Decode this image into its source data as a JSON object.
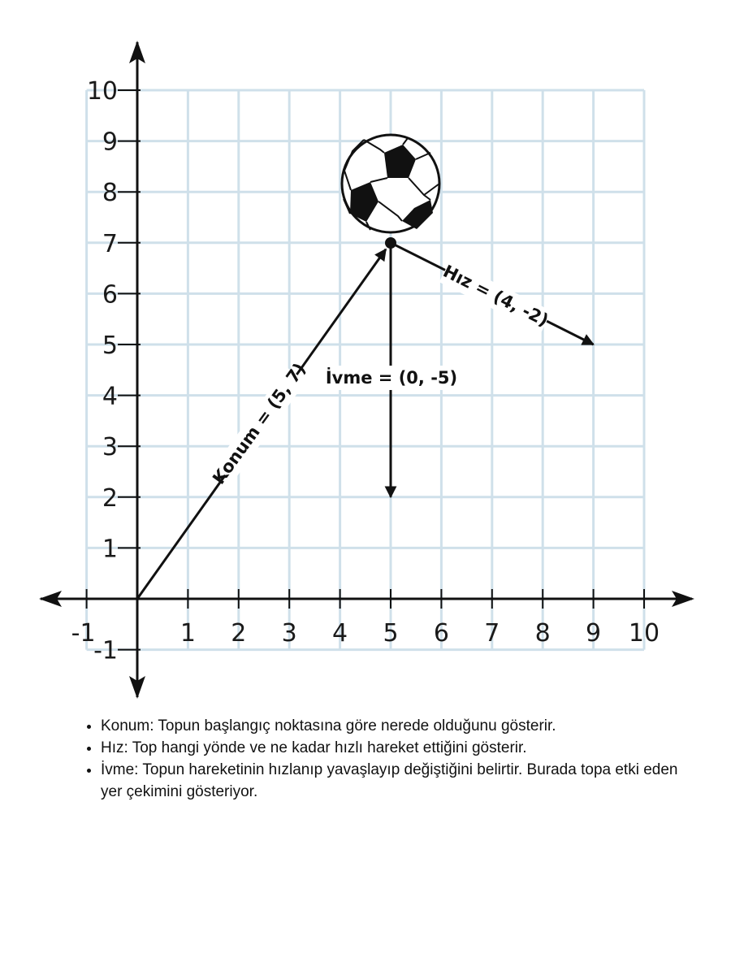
{
  "diagram": {
    "x_ticks": [
      {
        "value": -1,
        "label": "-1"
      },
      {
        "value": 1,
        "label": "1"
      },
      {
        "value": 2,
        "label": "2"
      },
      {
        "value": 3,
        "label": "3"
      },
      {
        "value": 4,
        "label": "4"
      },
      {
        "value": 5,
        "label": "5"
      },
      {
        "value": 6,
        "label": "6"
      },
      {
        "value": 7,
        "label": "7"
      },
      {
        "value": 8,
        "label": "8"
      },
      {
        "value": 9,
        "label": "9"
      },
      {
        "value": 10,
        "label": "10"
      }
    ],
    "y_ticks": [
      {
        "value": -1,
        "label": "-1"
      },
      {
        "value": 1,
        "label": "1"
      },
      {
        "value": 2,
        "label": "2"
      },
      {
        "value": 3,
        "label": "3"
      },
      {
        "value": 4,
        "label": "4"
      },
      {
        "value": 5,
        "label": "5"
      },
      {
        "value": 6,
        "label": "6"
      },
      {
        "value": 7,
        "label": "7"
      },
      {
        "value": 8,
        "label": "8"
      },
      {
        "value": 9,
        "label": "9"
      },
      {
        "value": 10,
        "label": "10"
      }
    ],
    "ball_position": [
      5,
      7
    ],
    "vectors": {
      "position": {
        "label": "Konum = (5, 7)",
        "from": [
          0,
          0
        ],
        "to": [
          5,
          7
        ]
      },
      "velocity": {
        "label": "Hız = (4, -2)",
        "from": [
          5,
          7
        ],
        "to": [
          9,
          5
        ]
      },
      "acceleration": {
        "label": "İvme = (0, -5)",
        "from": [
          5,
          7
        ],
        "to": [
          5,
          2
        ]
      }
    },
    "colors": {
      "grid": "#cfe0ea",
      "axis": "#111111",
      "vector": "#111111"
    }
  },
  "notes": [
    "Konum: Topun başlangıç noktasına göre nerede olduğunu gösterir.",
    "Hız: Top hangi yönde ve ne kadar hızlı hareket ettiğini gösterir.",
    "İvme: Topun hareketinin hızlanıp yavaşlayıp değiştiğini belirtir. Burada topa etki eden yer çekimini gösteriyor."
  ]
}
